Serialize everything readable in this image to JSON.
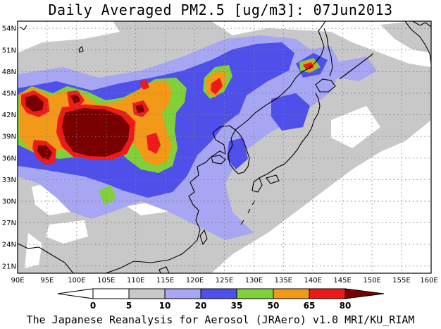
{
  "title": "Daily Averaged PM2.5 [ug/m3]: 07Jun2013",
  "footer": "The Japanese Reanalysis for Aerosol (JRAero) v1.0 MRI/KU_RIAM",
  "map": {
    "lon_range": [
      90,
      160
    ],
    "lat_range": [
      20,
      55
    ],
    "lon_ticks": [
      "90E",
      "95E",
      "100E",
      "105E",
      "110E",
      "115E",
      "120E",
      "125E",
      "130E",
      "135E",
      "140E",
      "145E",
      "150E",
      "155E",
      "160E"
    ],
    "lat_ticks": [
      "21N",
      "24N",
      "27N",
      "30N",
      "33N",
      "36N",
      "39N",
      "42N",
      "45N",
      "48N",
      "51N",
      "54N"
    ],
    "gridlines": "dotted"
  },
  "colorbar": {
    "levels": [
      "0",
      "5",
      "10",
      "20",
      "35",
      "50",
      "65",
      "80"
    ],
    "colors": {
      "under_0": "#ffffff",
      "0_5": "#ffffff",
      "5_10": "#c8c8c8",
      "10_20": "#a6a6f2",
      "20_35": "#4f4fea",
      "35_50": "#80d03a",
      "50_65": "#f29a18",
      "65_80": "#ee1a1a",
      "over_80": "#7a0000"
    }
  },
  "colors": {
    "gray": "#c8c8c8",
    "lightblue": "#a6a6f2",
    "blue": "#4f4fea",
    "green": "#80d03a",
    "orange": "#f29a18",
    "red": "#ee1a1a",
    "darkred": "#7a0000",
    "coast": "#000000"
  }
}
